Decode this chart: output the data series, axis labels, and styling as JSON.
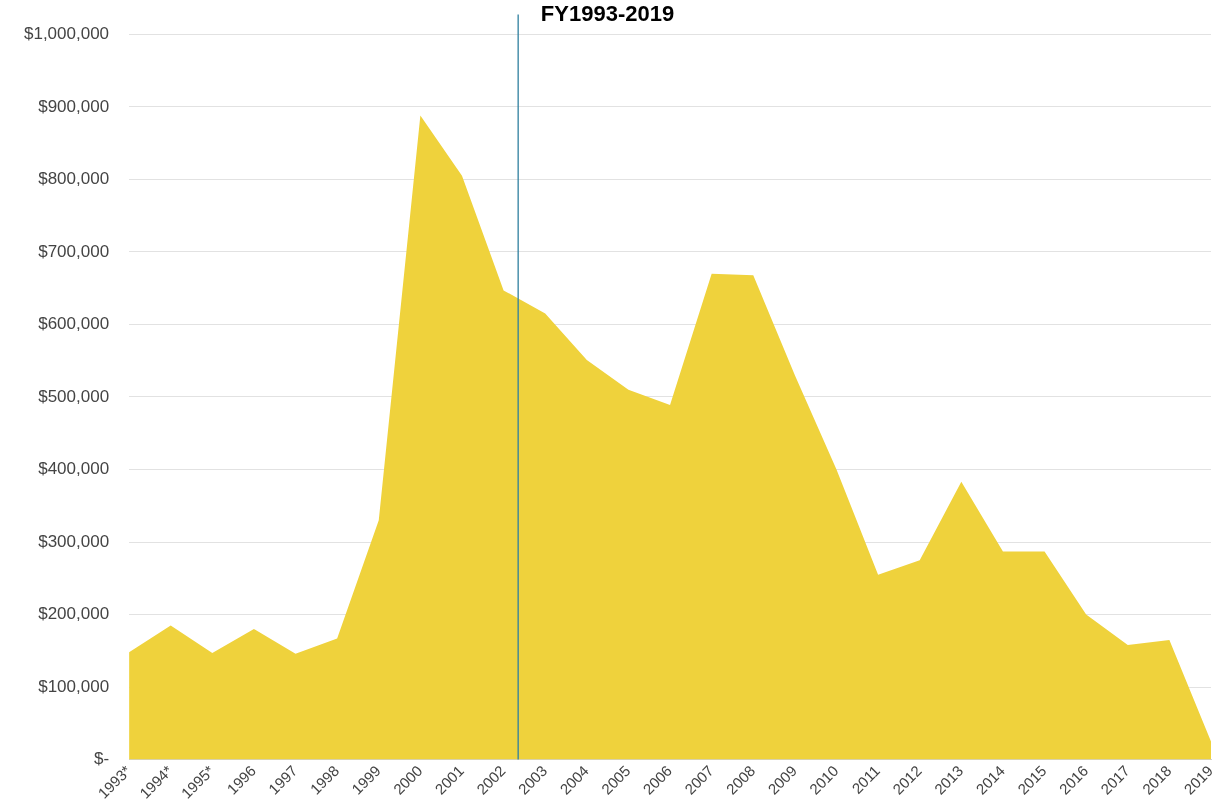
{
  "chart_data": {
    "type": "area",
    "title": "FY1993-2019",
    "x": [
      1993,
      1994,
      1995,
      1996,
      1997,
      1998,
      1999,
      2000,
      2001,
      2002,
      2003,
      2004,
      2005,
      2006,
      2007,
      2008,
      2009,
      2010,
      2011,
      2012,
      2013,
      2014,
      2015,
      2016,
      2017,
      2018,
      2019
    ],
    "series": [
      {
        "color": "#efd23c",
        "values": [
          148000,
          185000,
          147000,
          180000,
          146000,
          167000,
          330000,
          888000,
          805000,
          647000,
          615000,
          551000,
          510000,
          489000,
          670000,
          668000,
          530000,
          400000,
          255000,
          275000,
          383000,
          287000,
          287000,
          200000,
          158000,
          165000,
          25000
        ]
      }
    ],
    "xlim": [
      1993,
      2019
    ],
    "xticks": [
      {
        "value": 1993,
        "label": "1993*"
      },
      {
        "value": 1994,
        "label": "1994*"
      },
      {
        "value": 1995,
        "label": "1995*"
      },
      1996,
      1997,
      1998,
      1999,
      2000,
      2001,
      2002,
      2003,
      2004,
      2005,
      2006,
      2007,
      2008,
      2009,
      2010,
      2011,
      2012,
      2013,
      2014,
      2015,
      2016,
      2017,
      2018,
      2019
    ],
    "ylim": [
      0,
      1000000
    ],
    "yticks": [
      {
        "value": 0,
        "label": "$-"
      },
      {
        "value": 100000,
        "label": "$100,000"
      },
      {
        "value": 200000,
        "label": "$200,000"
      },
      {
        "value": 300000,
        "label": "$300,000"
      },
      {
        "value": 400000,
        "label": "$400,000"
      },
      {
        "value": 500000,
        "label": "$500,000"
      },
      {
        "value": 600000,
        "label": "$600,000"
      },
      {
        "value": 700000,
        "label": "$700,000"
      },
      {
        "value": 800000,
        "label": "$800,000"
      },
      {
        "value": 900000,
        "label": "$900,000"
      },
      {
        "value": 1000000,
        "label": "$1,000,000"
      }
    ],
    "ref_lines": [
      {
        "axis": "x",
        "value": 2002.35,
        "color": "#2f7f9f"
      }
    ],
    "grid": "y",
    "legend": false
  }
}
